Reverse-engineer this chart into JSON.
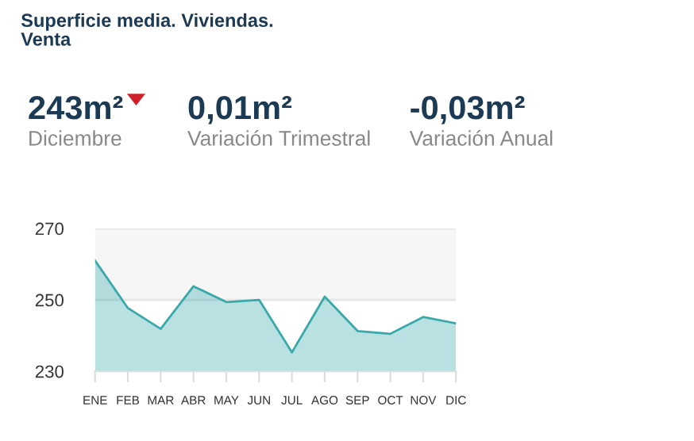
{
  "chart_data": {
    "type": "area",
    "title": "Superficie media. Viviendas.\nVenta",
    "annotations": [
      "243m²",
      "Diciembre",
      "0,01m²",
      "Variación Trimestral",
      "-0,03m²",
      "Variación Anual"
    ],
    "categories": [
      "ENE",
      "FEB",
      "MAR",
      "ABR",
      "MAY",
      "JUN",
      "JUL",
      "AGO",
      "SEP",
      "OCT",
      "NOV",
      "DIC"
    ],
    "series": [
      {
        "color": "#3aa9a9",
        "values": [
          261,
          247.7,
          241.9,
          253.8,
          249.4,
          250,
          235.3,
          250.9,
          241.3,
          240.5,
          245.2,
          243.4
        ]
      }
    ],
    "ylim": [
      230,
      270
    ],
    "yticks": [
      230,
      250,
      270
    ],
    "grid": "y",
    "bands": [
      {
        "axis": "y",
        "from": 250,
        "to": 270,
        "color": "#f6f6f6"
      }
    ],
    "legend": false
  }
}
